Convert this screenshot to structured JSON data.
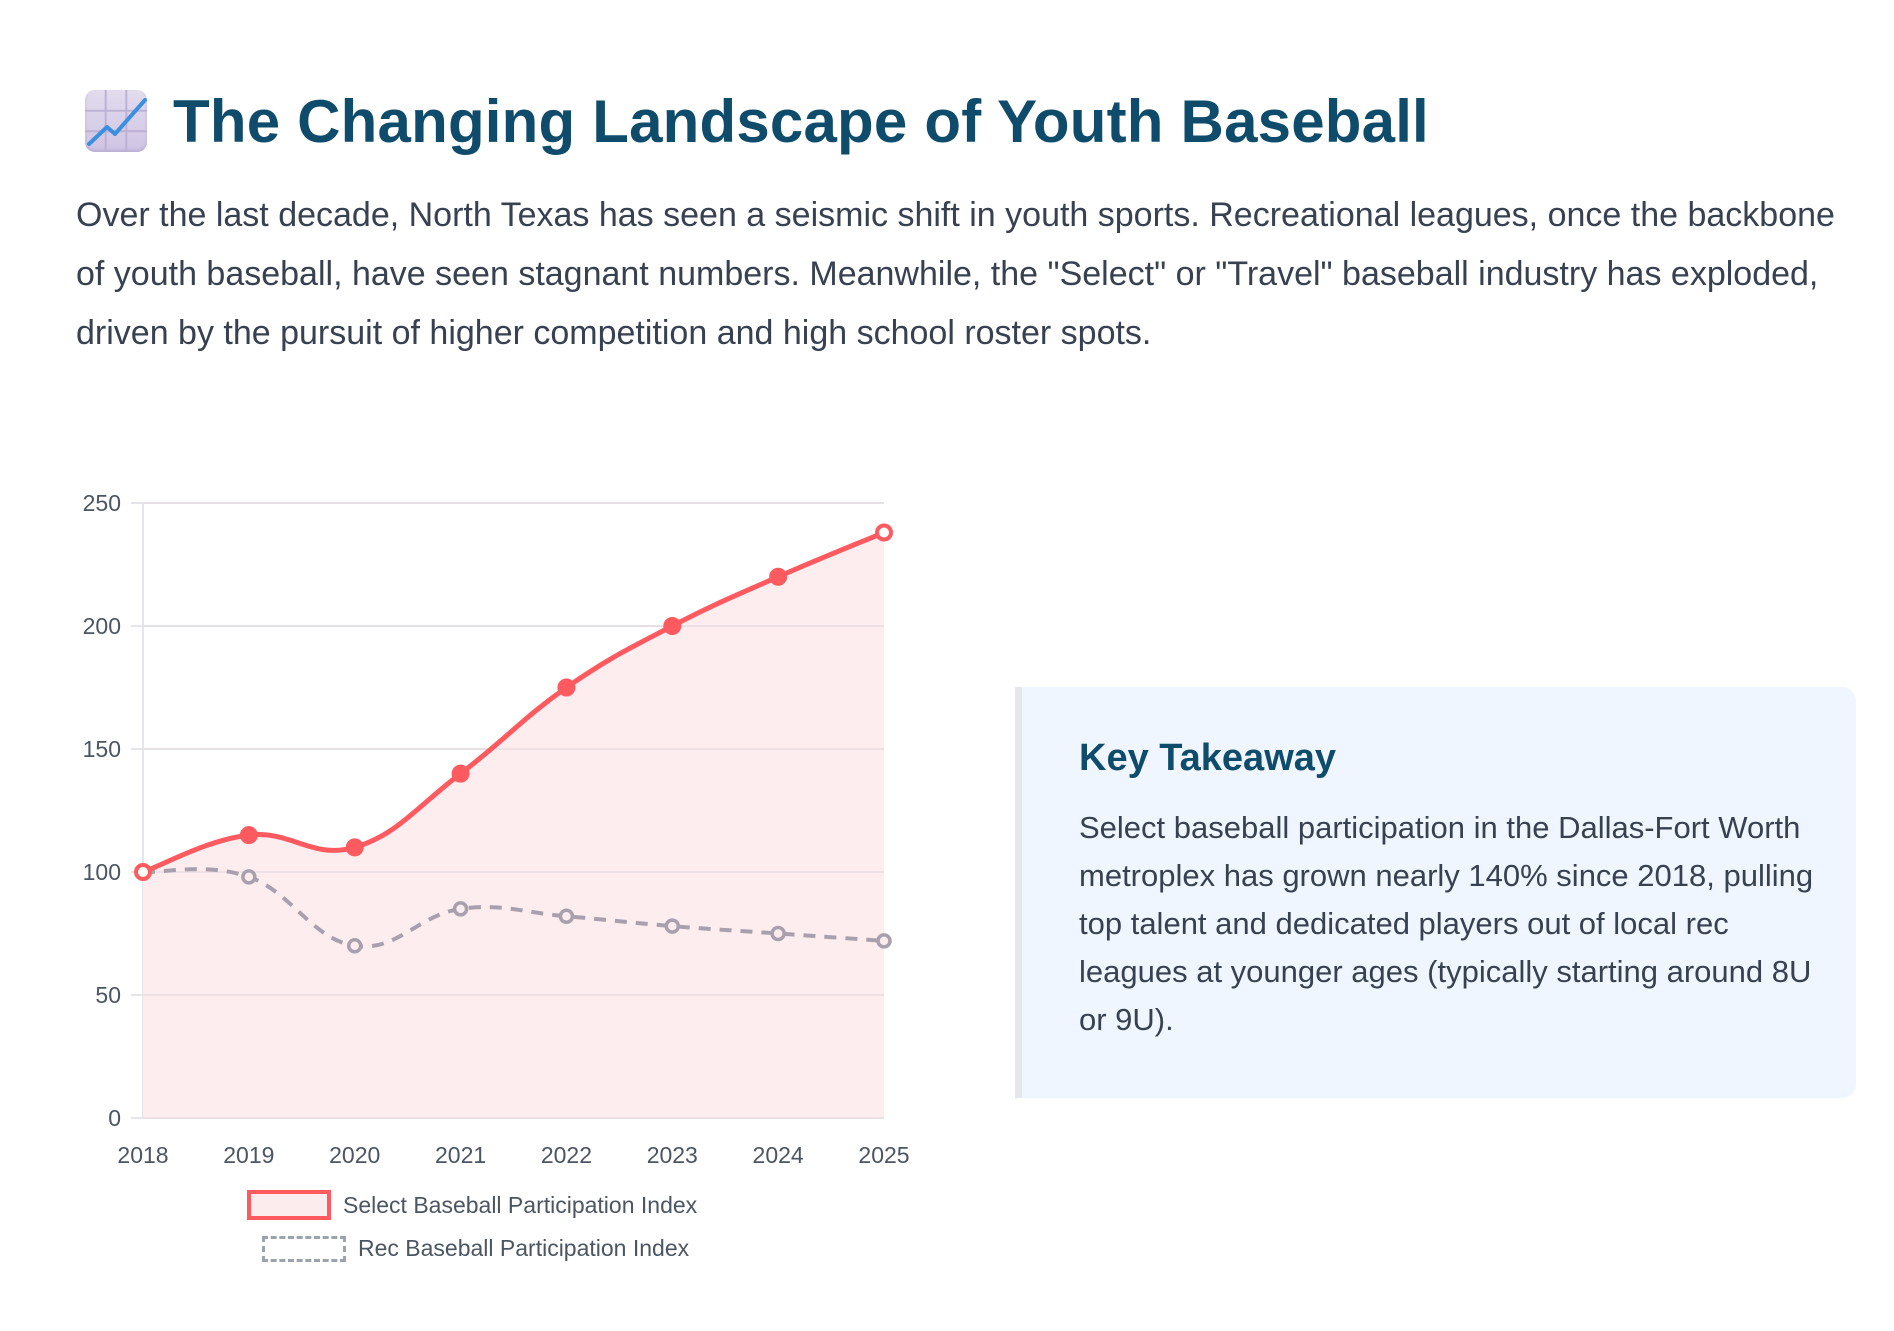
{
  "header": {
    "icon": "chart-increasing-icon",
    "title": "The Changing Landscape of Youth Baseball"
  },
  "intro": "Over the last decade, North Texas has seen a seismic shift in youth sports. Recreational leagues, once the backbone of youth baseball, have seen stagnant numbers. Meanwhile, the \"Select\" or \"Travel\" baseball industry has exploded, driven by the pursuit of higher competition and high school roster spots.",
  "takeaway": {
    "title": "Key Takeaway",
    "text": "Select baseball participation in the Dallas-Fort Worth metroplex has grown nearly 140% since 2018, pulling top talent and dedicated players out of local rec leagues at younger ages (typically starting around 8U or 9U)."
  },
  "colors": {
    "title": "#0f4c6b",
    "select_line": "#ff5a5f",
    "select_fill": "#fdecee",
    "rec_line": "#a8a0ad",
    "card_bg": "#eff6ff"
  },
  "chart_data": {
    "type": "line",
    "title": "",
    "xlabel": "",
    "ylabel": "",
    "x": [
      "2018",
      "2019",
      "2020",
      "2021",
      "2022",
      "2023",
      "2024",
      "2025"
    ],
    "ylim": [
      0,
      250
    ],
    "yticks": [
      "0",
      "50",
      "100",
      "150",
      "200",
      "250"
    ],
    "grid": true,
    "legend_position": "bottom",
    "series": [
      {
        "name": "Select Baseball Participation Index",
        "values": [
          100,
          115,
          110,
          140,
          175,
          200,
          220,
          238
        ],
        "style": "solid",
        "fill": true
      },
      {
        "name": "Rec Baseball Participation Index",
        "values": [
          100,
          98,
          70,
          85,
          82,
          78,
          75,
          72
        ],
        "style": "dashed",
        "fill": false
      }
    ]
  }
}
